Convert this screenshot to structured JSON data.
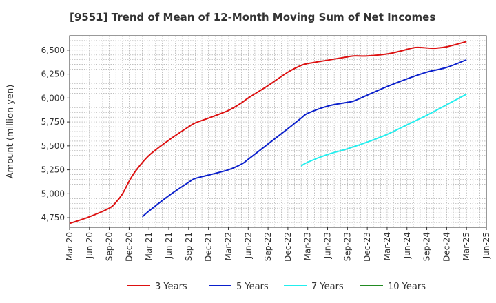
{
  "chart_data": {
    "type": "line",
    "title": "[9551]  Trend of Mean of 12-Month Moving Sum of Net Incomes",
    "ylabel": "Amount (million yen)",
    "xlabel": "",
    "ylim": [
      4650,
      6650
    ],
    "yticks": [
      4750,
      5000,
      5250,
      5500,
      5750,
      6000,
      6250,
      6500
    ],
    "ytick_labels": [
      "4,750",
      "5,000",
      "5,250",
      "5,500",
      "5,750",
      "6,000",
      "6,250",
      "6,500"
    ],
    "xlim": [
      "2020-03",
      "2025-06"
    ],
    "xticks": [
      "2020-03",
      "2020-06",
      "2020-09",
      "2020-12",
      "2021-03",
      "2021-06",
      "2021-09",
      "2021-12",
      "2022-03",
      "2022-06",
      "2022-09",
      "2022-12",
      "2023-03",
      "2023-06",
      "2023-09",
      "2023-12",
      "2024-03",
      "2024-06",
      "2024-09",
      "2024-12",
      "2025-03",
      "2025-06"
    ],
    "xtick_labels": [
      "Mar-20",
      "Jun-20",
      "Sep-20",
      "Dec-20",
      "Mar-21",
      "Jun-21",
      "Sep-21",
      "Dec-21",
      "Mar-22",
      "Jun-22",
      "Sep-22",
      "Dec-22",
      "Mar-23",
      "Jun-23",
      "Sep-23",
      "Dec-23",
      "Mar-24",
      "Jun-24",
      "Sep-24",
      "Dec-24",
      "Mar-25",
      "Jun-25"
    ],
    "grid": true,
    "legend_position": "bottom",
    "series": [
      {
        "name": "3 Years",
        "color": "#dd1111",
        "points": [
          [
            "2020-03",
            4690
          ],
          [
            "2020-06",
            4760
          ],
          [
            "2020-09",
            4850
          ],
          [
            "2020-10",
            4910
          ],
          [
            "2020-11",
            5000
          ],
          [
            "2020-12",
            5130
          ],
          [
            "2021-01",
            5240
          ],
          [
            "2021-03",
            5400
          ],
          [
            "2021-06",
            5560
          ],
          [
            "2021-09",
            5700
          ],
          [
            "2021-10",
            5740
          ],
          [
            "2021-12",
            5790
          ],
          [
            "2022-03",
            5870
          ],
          [
            "2022-05",
            5950
          ],
          [
            "2022-06",
            6000
          ],
          [
            "2022-09",
            6130
          ],
          [
            "2022-12",
            6270
          ],
          [
            "2023-02",
            6340
          ],
          [
            "2023-03",
            6360
          ],
          [
            "2023-06",
            6395
          ],
          [
            "2023-09",
            6430
          ],
          [
            "2023-10",
            6440
          ],
          [
            "2023-12",
            6440
          ],
          [
            "2024-03",
            6460
          ],
          [
            "2024-05",
            6490
          ],
          [
            "2024-07",
            6525
          ],
          [
            "2024-08",
            6528
          ],
          [
            "2024-10",
            6520
          ],
          [
            "2024-12",
            6535
          ],
          [
            "2025-03",
            6590
          ]
        ]
      },
      {
        "name": "5 Years",
        "color": "#0a1fcc",
        "points": [
          [
            "2021-02",
            4760
          ],
          [
            "2021-03",
            4820
          ],
          [
            "2021-06",
            4980
          ],
          [
            "2021-09",
            5120
          ],
          [
            "2021-10",
            5160
          ],
          [
            "2021-12",
            5195
          ],
          [
            "2022-03",
            5250
          ],
          [
            "2022-05",
            5310
          ],
          [
            "2022-06",
            5360
          ],
          [
            "2022-09",
            5520
          ],
          [
            "2022-12",
            5680
          ],
          [
            "2023-02",
            5790
          ],
          [
            "2023-03",
            5840
          ],
          [
            "2023-06",
            5915
          ],
          [
            "2023-09",
            5955
          ],
          [
            "2023-10",
            5970
          ],
          [
            "2023-12",
            6030
          ],
          [
            "2024-03",
            6120
          ],
          [
            "2024-06",
            6200
          ],
          [
            "2024-09",
            6270
          ],
          [
            "2024-12",
            6320
          ],
          [
            "2025-03",
            6400
          ]
        ]
      },
      {
        "name": "7 Years",
        "color": "#22eeee",
        "points": [
          [
            "2023-02",
            5290
          ],
          [
            "2023-03",
            5330
          ],
          [
            "2023-06",
            5410
          ],
          [
            "2023-09",
            5470
          ],
          [
            "2023-12",
            5540
          ],
          [
            "2024-03",
            5620
          ],
          [
            "2024-06",
            5720
          ],
          [
            "2024-09",
            5820
          ],
          [
            "2024-12",
            5930
          ],
          [
            "2025-03",
            6040
          ]
        ]
      },
      {
        "name": "10 Years",
        "color": "#228b22",
        "points": []
      }
    ]
  }
}
